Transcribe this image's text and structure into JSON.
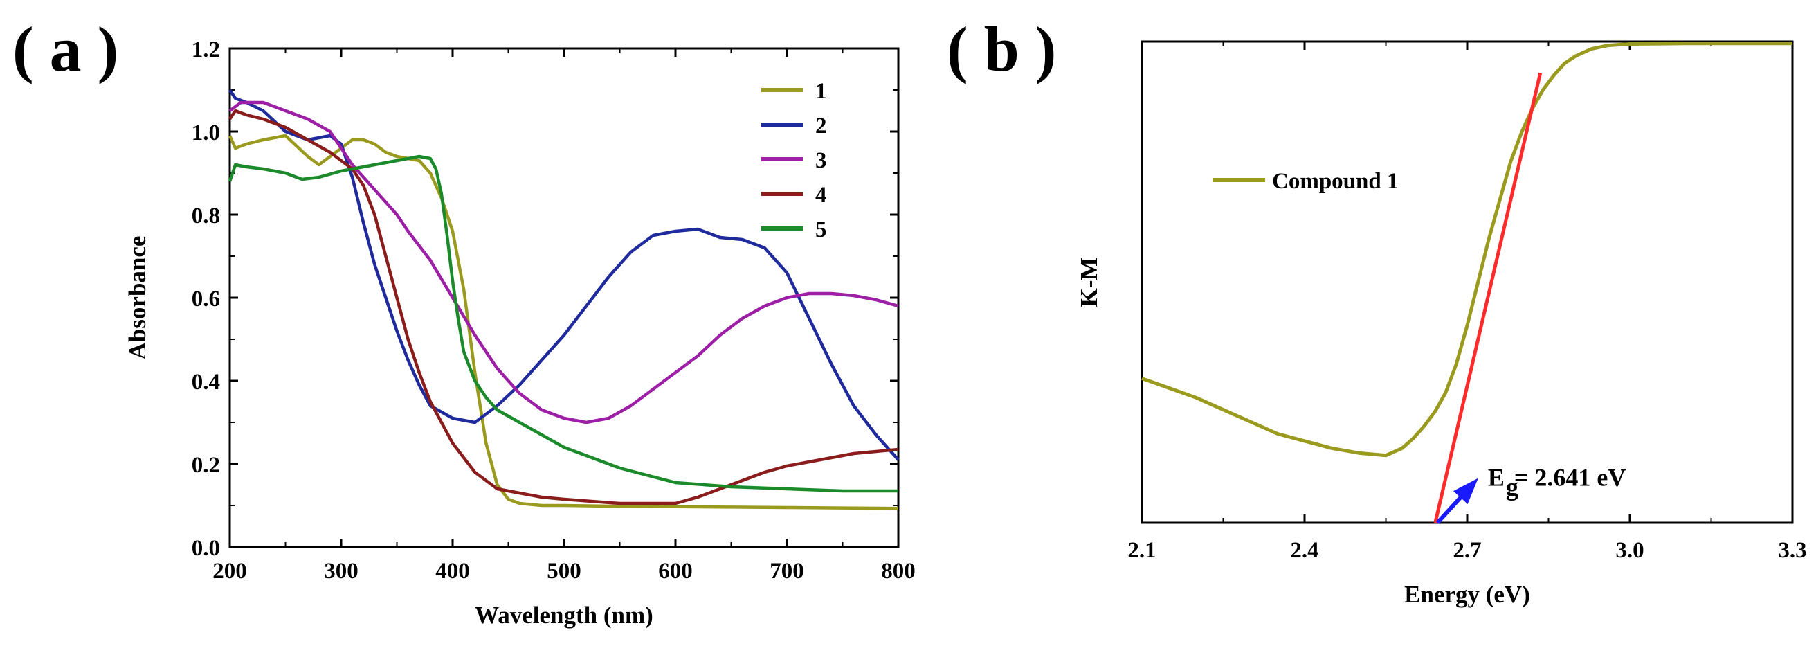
{
  "figure": {
    "panel_a_label": "( a )",
    "panel_b_label": "( b )"
  },
  "chart_data": [
    {
      "type": "line",
      "panel": "a",
      "xlabel": "Wavelength (nm)",
      "ylabel": "Absorbance",
      "xlim": [
        200,
        800
      ],
      "ylim": [
        0.0,
        1.2
      ],
      "x_ticks": [
        200,
        300,
        400,
        500,
        600,
        700,
        800
      ],
      "x_tick_labels": [
        "200",
        "300",
        "400",
        "500",
        "600",
        "700",
        "800"
      ],
      "y_ticks": [
        0.0,
        0.2,
        0.4,
        0.6,
        0.8,
        1.0,
        1.2
      ],
      "y_tick_labels": [
        "0.0",
        "0.2",
        "0.4",
        "0.6",
        "0.8",
        "1.0",
        "1.2"
      ],
      "legend_position": "top-right",
      "series": [
        {
          "name": "1",
          "color": "#9a9a1f",
          "x": [
            200,
            205,
            215,
            230,
            250,
            270,
            280,
            290,
            300,
            310,
            320,
            330,
            340,
            350,
            360,
            370,
            380,
            390,
            400,
            410,
            420,
            430,
            440,
            450,
            460,
            480,
            500,
            550,
            600,
            650,
            700,
            750,
            800
          ],
          "y": [
            0.99,
            0.96,
            0.97,
            0.98,
            0.99,
            0.94,
            0.92,
            0.94,
            0.96,
            0.98,
            0.98,
            0.97,
            0.95,
            0.94,
            0.935,
            0.93,
            0.9,
            0.84,
            0.76,
            0.62,
            0.42,
            0.25,
            0.15,
            0.115,
            0.105,
            0.1,
            0.1,
            0.098,
            0.097,
            0.096,
            0.095,
            0.094,
            0.093
          ]
        },
        {
          "name": "2",
          "color": "#1f2b9c",
          "x": [
            200,
            205,
            215,
            230,
            250,
            270,
            290,
            300,
            310,
            320,
            330,
            340,
            350,
            360,
            370,
            380,
            390,
            400,
            420,
            440,
            460,
            480,
            500,
            520,
            540,
            560,
            580,
            600,
            620,
            640,
            660,
            680,
            700,
            720,
            740,
            760,
            780,
            800
          ],
          "y": [
            1.1,
            1.08,
            1.07,
            1.05,
            1.0,
            0.98,
            0.99,
            0.97,
            0.89,
            0.78,
            0.68,
            0.6,
            0.52,
            0.45,
            0.39,
            0.34,
            0.325,
            0.31,
            0.3,
            0.34,
            0.39,
            0.45,
            0.51,
            0.58,
            0.65,
            0.71,
            0.75,
            0.76,
            0.765,
            0.745,
            0.74,
            0.72,
            0.66,
            0.55,
            0.44,
            0.34,
            0.27,
            0.21
          ]
        },
        {
          "name": "3",
          "color": "#9c1fa6",
          "x": [
            200,
            210,
            230,
            250,
            270,
            290,
            300,
            310,
            320,
            330,
            340,
            350,
            360,
            380,
            400,
            420,
            440,
            460,
            480,
            500,
            520,
            540,
            560,
            580,
            600,
            620,
            640,
            660,
            680,
            700,
            720,
            740,
            760,
            780,
            800
          ],
          "y": [
            1.05,
            1.07,
            1.07,
            1.05,
            1.03,
            1.0,
            0.96,
            0.92,
            0.89,
            0.86,
            0.83,
            0.8,
            0.76,
            0.69,
            0.6,
            0.51,
            0.43,
            0.37,
            0.33,
            0.31,
            0.3,
            0.31,
            0.34,
            0.38,
            0.42,
            0.46,
            0.51,
            0.55,
            0.58,
            0.6,
            0.61,
            0.61,
            0.605,
            0.595,
            0.58
          ]
        },
        {
          "name": "4",
          "color": "#8a1c1c",
          "x": [
            200,
            205,
            215,
            230,
            250,
            270,
            290,
            300,
            310,
            320,
            330,
            340,
            350,
            360,
            370,
            380,
            400,
            420,
            440,
            460,
            480,
            500,
            550,
            600,
            620,
            640,
            660,
            680,
            700,
            720,
            740,
            760,
            780,
            800
          ],
          "y": [
            1.03,
            1.05,
            1.04,
            1.03,
            1.01,
            0.98,
            0.95,
            0.93,
            0.91,
            0.87,
            0.8,
            0.7,
            0.6,
            0.5,
            0.42,
            0.35,
            0.25,
            0.18,
            0.14,
            0.13,
            0.12,
            0.115,
            0.105,
            0.105,
            0.12,
            0.14,
            0.16,
            0.18,
            0.195,
            0.205,
            0.215,
            0.225,
            0.23,
            0.235
          ]
        },
        {
          "name": "5",
          "color": "#1b8a2a",
          "x": [
            200,
            205,
            215,
            230,
            250,
            265,
            280,
            300,
            320,
            340,
            360,
            370,
            380,
            385,
            390,
            395,
            400,
            405,
            410,
            420,
            430,
            440,
            460,
            480,
            500,
            550,
            600,
            650,
            700,
            750,
            800
          ],
          "y": [
            0.88,
            0.92,
            0.915,
            0.91,
            0.9,
            0.885,
            0.89,
            0.905,
            0.915,
            0.925,
            0.935,
            0.94,
            0.935,
            0.91,
            0.85,
            0.75,
            0.64,
            0.55,
            0.47,
            0.4,
            0.36,
            0.33,
            0.3,
            0.27,
            0.24,
            0.19,
            0.155,
            0.145,
            0.14,
            0.135,
            0.135
          ]
        }
      ]
    },
    {
      "type": "line",
      "panel": "b",
      "xlabel": "Energy (eV)",
      "ylabel": "K-M",
      "xlim": [
        2.1,
        3.3
      ],
      "ylim": [
        0,
        1
      ],
      "x_ticks": [
        2.1,
        2.4,
        2.7,
        3.0,
        3.3
      ],
      "x_tick_labels": [
        "2.1",
        "2.4",
        "2.7",
        "3.0",
        "3.3"
      ],
      "y_ticks_labeled": false,
      "legend_position": "left",
      "series": [
        {
          "name": "Compound 1",
          "color": "#9a9a1f",
          "x": [
            2.1,
            2.15,
            2.2,
            2.25,
            2.3,
            2.35,
            2.4,
            2.45,
            2.5,
            2.55,
            2.58,
            2.6,
            2.62,
            2.64,
            2.66,
            2.68,
            2.7,
            2.72,
            2.74,
            2.76,
            2.78,
            2.8,
            2.82,
            2.84,
            2.86,
            2.88,
            2.9,
            2.93,
            2.96,
            3.0,
            3.1,
            3.2,
            3.3
          ],
          "y": [
            0.3,
            0.28,
            0.26,
            0.235,
            0.21,
            0.185,
            0.17,
            0.155,
            0.145,
            0.14,
            0.155,
            0.175,
            0.2,
            0.23,
            0.27,
            0.33,
            0.41,
            0.5,
            0.59,
            0.67,
            0.75,
            0.81,
            0.86,
            0.9,
            0.93,
            0.955,
            0.97,
            0.985,
            0.992,
            0.995,
            0.996,
            0.996,
            0.996
          ]
        }
      ],
      "fit_line": {
        "color": "#ff2a2a",
        "x": [
          2.641,
          2.835
        ],
        "y": [
          0,
          0.935
        ]
      },
      "annotation": {
        "label_main": "E",
        "label_sub": "g",
        "label_rest": " = 2.641 eV",
        "arrow_color": "#1a1aff",
        "arrow_from": [
          2.645,
          0.0
        ],
        "arrow_to": [
          2.71,
          0.08
        ]
      }
    }
  ]
}
